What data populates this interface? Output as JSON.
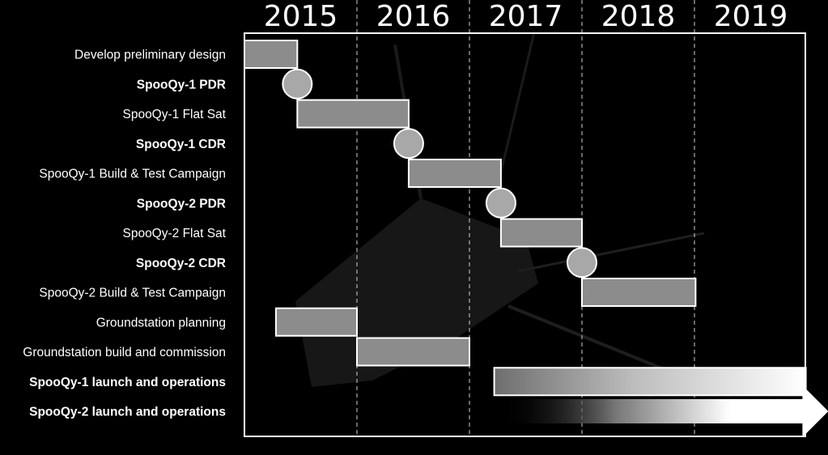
{
  "chart_data": {
    "type": "gantt",
    "x_axis": {
      "unit": "year",
      "range": [
        2015,
        2020
      ],
      "tick_labels": [
        "2015",
        "2016",
        "2017",
        "2018",
        "2019"
      ]
    },
    "colors": {
      "bar_fill": "#8c8c8c",
      "bar_stroke": "#ffffff",
      "milestone_fill": "#a8a8a8",
      "frame": "#ffffff",
      "gridline": "#d0d0d0",
      "background": "#000000"
    },
    "tasks": [
      {
        "label": "Develop preliminary design",
        "bold": false,
        "kind": "bar",
        "start": 2015.0,
        "end": 2015.47
      },
      {
        "label": "SpooQy-1 PDR",
        "bold": true,
        "kind": "milestone",
        "at": 2015.47
      },
      {
        "label": "SpooQy-1 Flat Sat",
        "bold": false,
        "kind": "bar",
        "start": 2015.47,
        "end": 2016.46
      },
      {
        "label": "SpooQy-1 CDR",
        "bold": true,
        "kind": "milestone",
        "at": 2016.46
      },
      {
        "label": "SpooQy-1 Build & Test Campaign",
        "bold": false,
        "kind": "bar",
        "start": 2016.46,
        "end": 2017.28
      },
      {
        "label": "SpooQy-2 PDR",
        "bold": true,
        "kind": "milestone",
        "at": 2017.28
      },
      {
        "label": "SpooQy-2 Flat Sat",
        "bold": false,
        "kind": "bar",
        "start": 2017.28,
        "end": 2018.0
      },
      {
        "label": "SpooQy-2 CDR",
        "bold": true,
        "kind": "milestone",
        "at": 2018.0
      },
      {
        "label": "SpooQy-2 Build & Test Campaign",
        "bold": false,
        "kind": "bar",
        "start": 2018.0,
        "end": 2019.01
      },
      {
        "label": "Groundstation planning",
        "bold": false,
        "kind": "bar",
        "start": 2015.28,
        "end": 2016.0
      },
      {
        "label": "Groundstation build and commission",
        "bold": false,
        "kind": "bar",
        "start": 2016.0,
        "end": 2017.0
      },
      {
        "label": "SpooQy-1 launch and operations",
        "bold": true,
        "kind": "fade-bar",
        "start": 2017.22,
        "end": 2019.99
      },
      {
        "label": "SpooQy-2 launch and operations",
        "bold": true,
        "kind": "arrow",
        "start": 2017.28,
        "end": 2020.19
      }
    ]
  }
}
